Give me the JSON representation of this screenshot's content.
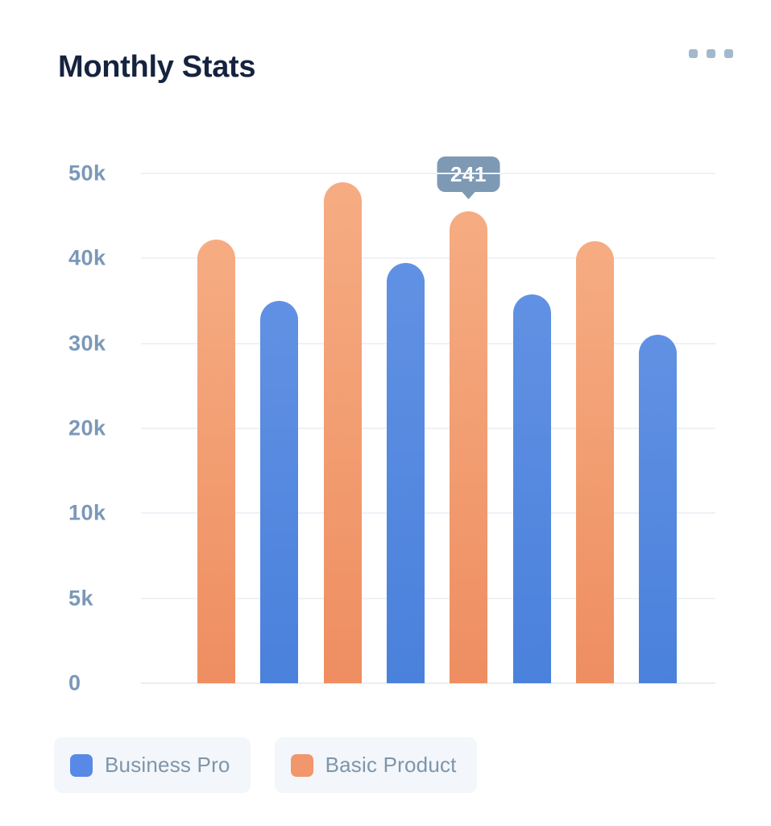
{
  "card": {
    "menu_icon": "ellipsis-icon",
    "colors": {
      "title": "#16233F",
      "axis_label": "#7B98B8",
      "gridline": "#EEF2F6",
      "menu_dots": "#A4B8CB",
      "tooltip_bg": "#7E99B4",
      "tooltip_text": "#FFFFFF",
      "legend_bg": "#F3F6FA",
      "legend_text": "#7E95AA"
    }
  },
  "legend": [
    {
      "series_index": 1,
      "swatch": "#5989E7"
    },
    {
      "series_index": 0,
      "swatch": "#F2966B"
    }
  ],
  "chart_data": {
    "type": "bar",
    "title": "Monthly Stats",
    "xlabel": "",
    "ylabel": "",
    "ylim": [
      0,
      50000
    ],
    "grid": true,
    "legend_position": "bottom",
    "yticks": [
      {
        "label": "50k",
        "value": 50000
      },
      {
        "label": "40k",
        "value": 40000
      },
      {
        "label": "30k",
        "value": 30000
      },
      {
        "label": "20k",
        "value": 20000
      },
      {
        "label": "10k",
        "value": 10000
      },
      {
        "label": "5k",
        "value": 5000
      },
      {
        "label": "0",
        "value": 0
      }
    ],
    "series": [
      {
        "name": "Basic Product",
        "gradient": [
          "#F6AC82",
          "#EE8E61"
        ],
        "values": [
          42200,
          49000,
          45500,
          42000
        ]
      },
      {
        "name": "Business Pro",
        "gradient": [
          "#6191E3",
          "#4A81DC"
        ],
        "values": [
          35000,
          39500,
          35800,
          31000
        ]
      }
    ],
    "bar_order": "interleaved: Basic Product bar then Business Pro bar, 4 pairs",
    "tooltip": {
      "text": "241",
      "bar_index": 4
    }
  }
}
